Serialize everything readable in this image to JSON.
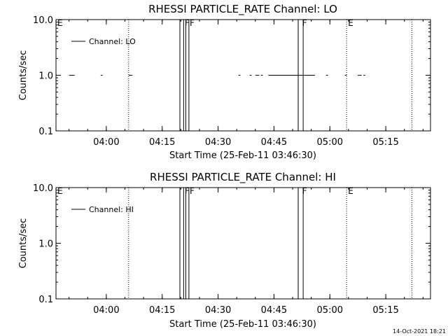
{
  "chart_data": [
    {
      "type": "line",
      "title": "RHESSI PARTICLE_RATE Channel: LO",
      "xlabel": "Start Time (25-Feb-11 03:46:30)",
      "ylabel": "Counts/sec",
      "yscale": "log",
      "ylim": [
        0.1,
        10.0
      ],
      "xlim": [
        "03:46:30",
        "05:27:00"
      ],
      "xticks": [
        "04:00",
        "04:15",
        "04:30",
        "04:45",
        "05:00",
        "05:15"
      ],
      "yticks": [
        "0.1",
        "1.0",
        "10.0"
      ],
      "legend": {
        "position": "top-left",
        "label": "Channel: LO"
      },
      "flags": [
        {
          "label": "E",
          "x": "03:46:30"
        },
        {
          "label": "F",
          "x": "04:20:40"
        },
        {
          "label": "F",
          "x": "04:22:00"
        },
        {
          "label": "F",
          "x": "04:52:10"
        },
        {
          "label": "E",
          "x": "05:04:30"
        }
      ],
      "flag_bars": [
        {
          "start": "04:19:45",
          "end": "04:20:45"
        },
        {
          "start": "04:21:20",
          "end": "04:22:10"
        },
        {
          "start": "04:51:30",
          "end": "04:52:50"
        }
      ],
      "dotted_lines": [
        "04:06:00",
        "05:04:30",
        "05:22:00"
      ],
      "series": [
        {
          "name": "Channel: LO",
          "segments": [
            {
              "start": "03:50:00",
              "end": "03:51:30",
              "y": 1.0
            },
            {
              "start": "03:58:30",
              "end": "03:59:00",
              "y": 1.0
            },
            {
              "start": "04:06:00",
              "end": "04:07:00",
              "y": 1.0
            },
            {
              "start": "04:35:30",
              "end": "04:36:00",
              "y": 1.0
            },
            {
              "start": "04:38:30",
              "end": "04:39:00",
              "y": 1.0
            },
            {
              "start": "04:40:00",
              "end": "04:41:00",
              "y": 1.0
            },
            {
              "start": "04:41:30",
              "end": "04:42:00",
              "y": 1.0
            },
            {
              "start": "04:43:30",
              "end": "04:56:00",
              "y": 1.0
            },
            {
              "start": "04:59:00",
              "end": "04:59:30",
              "y": 1.0
            },
            {
              "start": "05:04:00",
              "end": "05:04:30",
              "y": 1.0
            },
            {
              "start": "05:07:30",
              "end": "05:08:30",
              "y": 1.0
            },
            {
              "start": "05:09:00",
              "end": "05:09:30",
              "y": 1.0
            }
          ]
        }
      ]
    },
    {
      "type": "line",
      "title": "RHESSI PARTICLE_RATE Channel: HI",
      "xlabel": "Start Time (25-Feb-11 03:46:30)",
      "ylabel": "Counts/sec",
      "yscale": "log",
      "ylim": [
        0.1,
        10.0
      ],
      "xlim": [
        "03:46:30",
        "05:27:00"
      ],
      "xticks": [
        "04:00",
        "04:15",
        "04:30",
        "04:45",
        "05:00",
        "05:15"
      ],
      "yticks": [
        "0.1",
        "1.0",
        "10.0"
      ],
      "legend": {
        "position": "top-left",
        "label": "Channel: HI"
      },
      "flags": [
        {
          "label": "E",
          "x": "03:46:30"
        },
        {
          "label": "F",
          "x": "04:20:40"
        },
        {
          "label": "F",
          "x": "04:22:00"
        },
        {
          "label": "F",
          "x": "04:52:10"
        },
        {
          "label": "E",
          "x": "05:04:30"
        }
      ],
      "flag_bars": [
        {
          "start": "04:19:45",
          "end": "04:20:45"
        },
        {
          "start": "04:21:20",
          "end": "04:22:10"
        },
        {
          "start": "04:51:30",
          "end": "04:52:50"
        }
      ],
      "dotted_lines": [
        "04:06:00",
        "05:04:30",
        "05:22:00"
      ],
      "series": [
        {
          "name": "Channel: HI",
          "segments": []
        }
      ]
    }
  ],
  "footer": {
    "timestamp": "14-Oct-2021 18:21"
  }
}
